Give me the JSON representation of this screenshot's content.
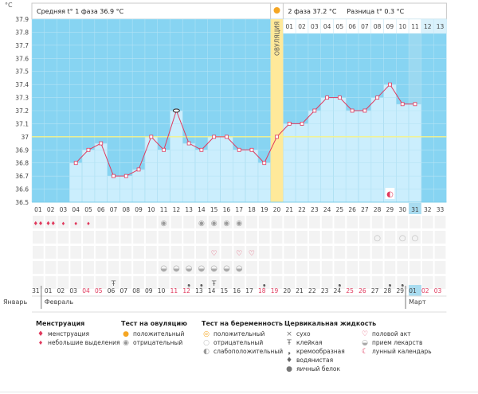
{
  "header": {
    "phase1_label": "Средняя t° 1 фаза 36.9 °C",
    "phase2_label": "2 фаза 37.2 °C",
    "diff_label": "Разница t° 0.3 °C",
    "unit_label": "°C",
    "ovulation_label": "ОВУЛЯЦИЯ"
  },
  "chart_data": {
    "type": "line",
    "title": "",
    "ylabel": "°C",
    "ylim": [
      36.5,
      37.9
    ],
    "ytick_labels": [
      "36.5",
      "36.6",
      "36.7",
      "36.8",
      "36.9",
      "37",
      "37.1",
      "37.2",
      "37.3",
      "37.4",
      "37.5",
      "37.6",
      "37.7",
      "37.8",
      "37.9"
    ],
    "cycle_days": [
      "01",
      "02",
      "03",
      "04",
      "05",
      "06",
      "07",
      "08",
      "09",
      "10",
      "11",
      "12",
      "13",
      "14",
      "15",
      "16",
      "17",
      "18",
      "19",
      "20",
      "21",
      "22",
      "23",
      "24",
      "25",
      "26",
      "27",
      "28",
      "29",
      "30",
      "31",
      "32",
      "33"
    ],
    "top_day_labels": [
      "01",
      "02",
      "03",
      "04",
      "05",
      "06",
      "07",
      "08",
      "09",
      "10",
      "11",
      "12",
      "13"
    ],
    "current_day_label": "31",
    "ovulation_day": "20",
    "coverline": 37.0,
    "temperatures": [
      null,
      null,
      null,
      36.8,
      36.9,
      36.95,
      36.7,
      36.7,
      36.75,
      37.0,
      36.9,
      37.2,
      36.95,
      36.9,
      37.0,
      37.0,
      36.9,
      36.9,
      36.8,
      37.0,
      37.1,
      37.1,
      37.2,
      37.3,
      37.3,
      37.2,
      37.2,
      37.3,
      37.4,
      37.25,
      37.25,
      null,
      null
    ]
  },
  "calendar": {
    "dates": [
      "31",
      "01",
      "02",
      "03",
      "04",
      "05",
      "06",
      "07",
      "08",
      "09",
      "10",
      "11",
      "12",
      "13",
      "14",
      "15",
      "16",
      "17",
      "18",
      "19",
      "20",
      "21",
      "22",
      "23",
      "24",
      "25",
      "26",
      "27",
      "28",
      "29",
      "01",
      "02",
      "03"
    ],
    "weekend_dates_index": [
      4,
      5,
      11,
      12,
      18,
      19,
      25,
      26,
      31,
      32
    ],
    "month_jan": "Январь",
    "month_feb": "Февраль",
    "month_mar": "Март"
  },
  "legend": {
    "menstruation_title": "Менструация",
    "menstruation_items": [
      "менструация",
      "небольшие выделения"
    ],
    "ovtest_title": "Тест на овуляцию",
    "ovtest_items": [
      "положительный",
      "отрицательный"
    ],
    "pregtest_title": "Тест на беременность",
    "pregtest_items": [
      "положительный",
      "отрицательный",
      "слабоположительный"
    ],
    "cervical_title": "Цервикальная жидкость",
    "cervical_items": [
      "сухо",
      "клейкая",
      "кремообразная",
      "водянистая",
      "яичный белок"
    ],
    "other_items": [
      "половой акт",
      "прием лекарств",
      "лунный календарь"
    ]
  },
  "colors": {
    "sky": "#87d4f2",
    "bar": "#cbeefd",
    "line": "#e0395d",
    "ovulation": "#ffe99a",
    "coverline": "#f6f38a",
    "current": "#a9dcf0"
  }
}
